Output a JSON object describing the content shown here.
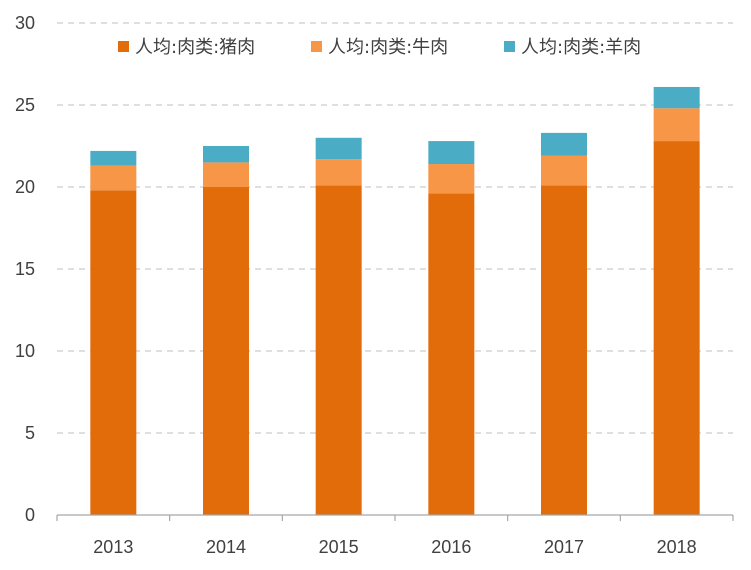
{
  "chart_data": {
    "type": "bar",
    "stacked": true,
    "title": "",
    "xlabel": "",
    "ylabel": "",
    "categories": [
      "2013",
      "2014",
      "2015",
      "2016",
      "2017",
      "2018"
    ],
    "ylim": [
      0,
      30
    ],
    "yticks": [
      0,
      5,
      10,
      15,
      20,
      25,
      30
    ],
    "grid": true,
    "legend_position": "top",
    "series": [
      {
        "name": "人均:肉类:猪肉",
        "color": "#e36c0a",
        "values": [
          19.8,
          20.0,
          20.1,
          19.6,
          20.1,
          22.8
        ]
      },
      {
        "name": "人均:肉类:牛肉",
        "color": "#f79646",
        "values": [
          1.5,
          1.5,
          1.6,
          1.8,
          1.8,
          2.0
        ]
      },
      {
        "name": "人均:肉类:羊肉",
        "color": "#4bacc6",
        "values": [
          0.9,
          1.0,
          1.3,
          1.4,
          1.4,
          1.3
        ]
      }
    ]
  }
}
